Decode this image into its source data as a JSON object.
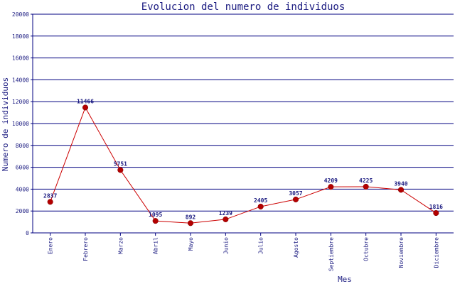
{
  "chart_data": {
    "type": "line",
    "title": "Evolucion del numero de individuos",
    "xlabel": "Mes",
    "ylabel": "Numero de individuos",
    "ylim": [
      0,
      20000
    ],
    "yticks": [
      "0",
      "2000",
      "4000",
      "6000",
      "8000",
      "10000",
      "12000",
      "14000",
      "16000",
      "18000",
      "20000"
    ],
    "categories": [
      "Enero",
      "Febrero",
      "Marzo",
      "Abril",
      "Mayo",
      "Junio",
      "Julio",
      "Agosto",
      "Septiembre",
      "Octubre",
      "Noviembre",
      "Diciembre"
    ],
    "values": [
      2837,
      11466,
      5751,
      1095,
      892,
      1239,
      2405,
      3057,
      4209,
      4225,
      3940,
      1816
    ],
    "data_labels": [
      "2837",
      "11466",
      "5751",
      "1095",
      "892",
      "1239",
      "2405",
      "3057",
      "4209",
      "4225",
      "3940",
      "1816"
    ],
    "grid": true,
    "colors": {
      "line": "#cc0000",
      "marker": "#b30000",
      "grid": "#000080",
      "axis": "#000080",
      "text": "#1a1a80"
    }
  }
}
